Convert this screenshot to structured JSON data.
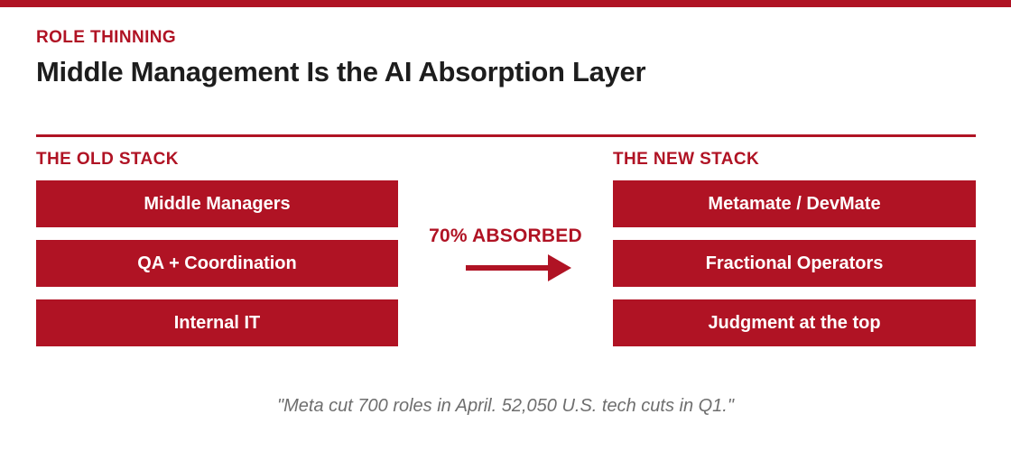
{
  "colors": {
    "accent": "#B01324",
    "title": "#1d1d1d",
    "quote": "#6e6e6e",
    "box-text": "#ffffff"
  },
  "header": {
    "eyebrow": "ROLE THINNING",
    "title": "Middle Management Is the AI Absorption Layer"
  },
  "old_stack": {
    "heading": "THE OLD STACK",
    "items": [
      "Middle Managers",
      "QA + Coordination",
      "Internal IT"
    ]
  },
  "new_stack": {
    "heading": "THE NEW STACK",
    "items": [
      "Metamate / DevMate",
      "Fractional Operators",
      "Judgment at the top"
    ]
  },
  "transition": {
    "label": "70% ABSORBED",
    "arrow_icon": "arrow-right"
  },
  "footer": {
    "quote": "\"Meta cut 700 roles in April. 52,050 U.S. tech cuts in Q1.\""
  }
}
